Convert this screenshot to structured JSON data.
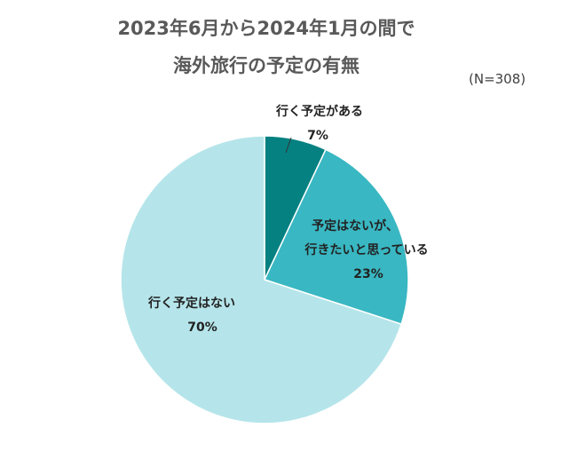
{
  "chart_data": {
    "type": "pie",
    "title_line1": "2023年6月から2024年1月の間で",
    "title_line2": "海外旅行の予定の有無",
    "note": "(N=308)",
    "slices": [
      {
        "label": "行く予定がある",
        "value": 7,
        "value_label": "7%",
        "color": "#068181"
      },
      {
        "label": "予定はないが、",
        "label2": "行きたいと思っている",
        "value": 23,
        "value_label": "23%",
        "color": "#39b7c2"
      },
      {
        "label": "行く予定はない",
        "value": 70,
        "value_label": "70%",
        "color": "#b5e5ea"
      }
    ]
  }
}
